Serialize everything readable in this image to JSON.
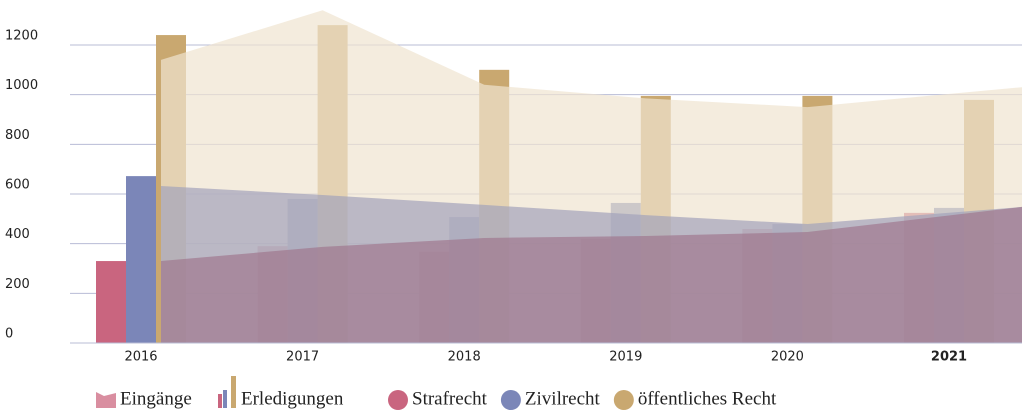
{
  "chart_data": {
    "type": "bar",
    "categories": [
      "2016",
      "2017",
      "2018",
      "2019",
      "2020",
      "2021"
    ],
    "area_label": "Eingänge",
    "bar_label": "Erledigungen",
    "series": [
      {
        "name": "Strafrecht",
        "color": "#c9657f",
        "area_color": "#a0788f",
        "values": [
          330,
          390,
          367,
          419,
          459,
          524
        ],
        "area_values": [
          330,
          387,
          423,
          431,
          447,
          548
        ]
      },
      {
        "name": "Zivilrecht",
        "color": "#7b86b8",
        "area_color": "#a3a3bb",
        "values": [
          672,
          580,
          507,
          564,
          479,
          544
        ],
        "area_values": [
          632,
          596,
          556,
          515,
          479,
          548
        ]
      },
      {
        "name": "öffentliches Recht",
        "color": "#c9a870",
        "area_color": "#efe4d0",
        "values": [
          1240,
          1280,
          1100,
          995,
          995,
          979
        ],
        "area_values": [
          1140,
          1340,
          1040,
          985,
          950,
          1030
        ]
      }
    ],
    "ylim": [
      0,
      1200
    ],
    "yticks": [
      0,
      200,
      400,
      600,
      800,
      1000,
      1200
    ],
    "grid": true
  }
}
